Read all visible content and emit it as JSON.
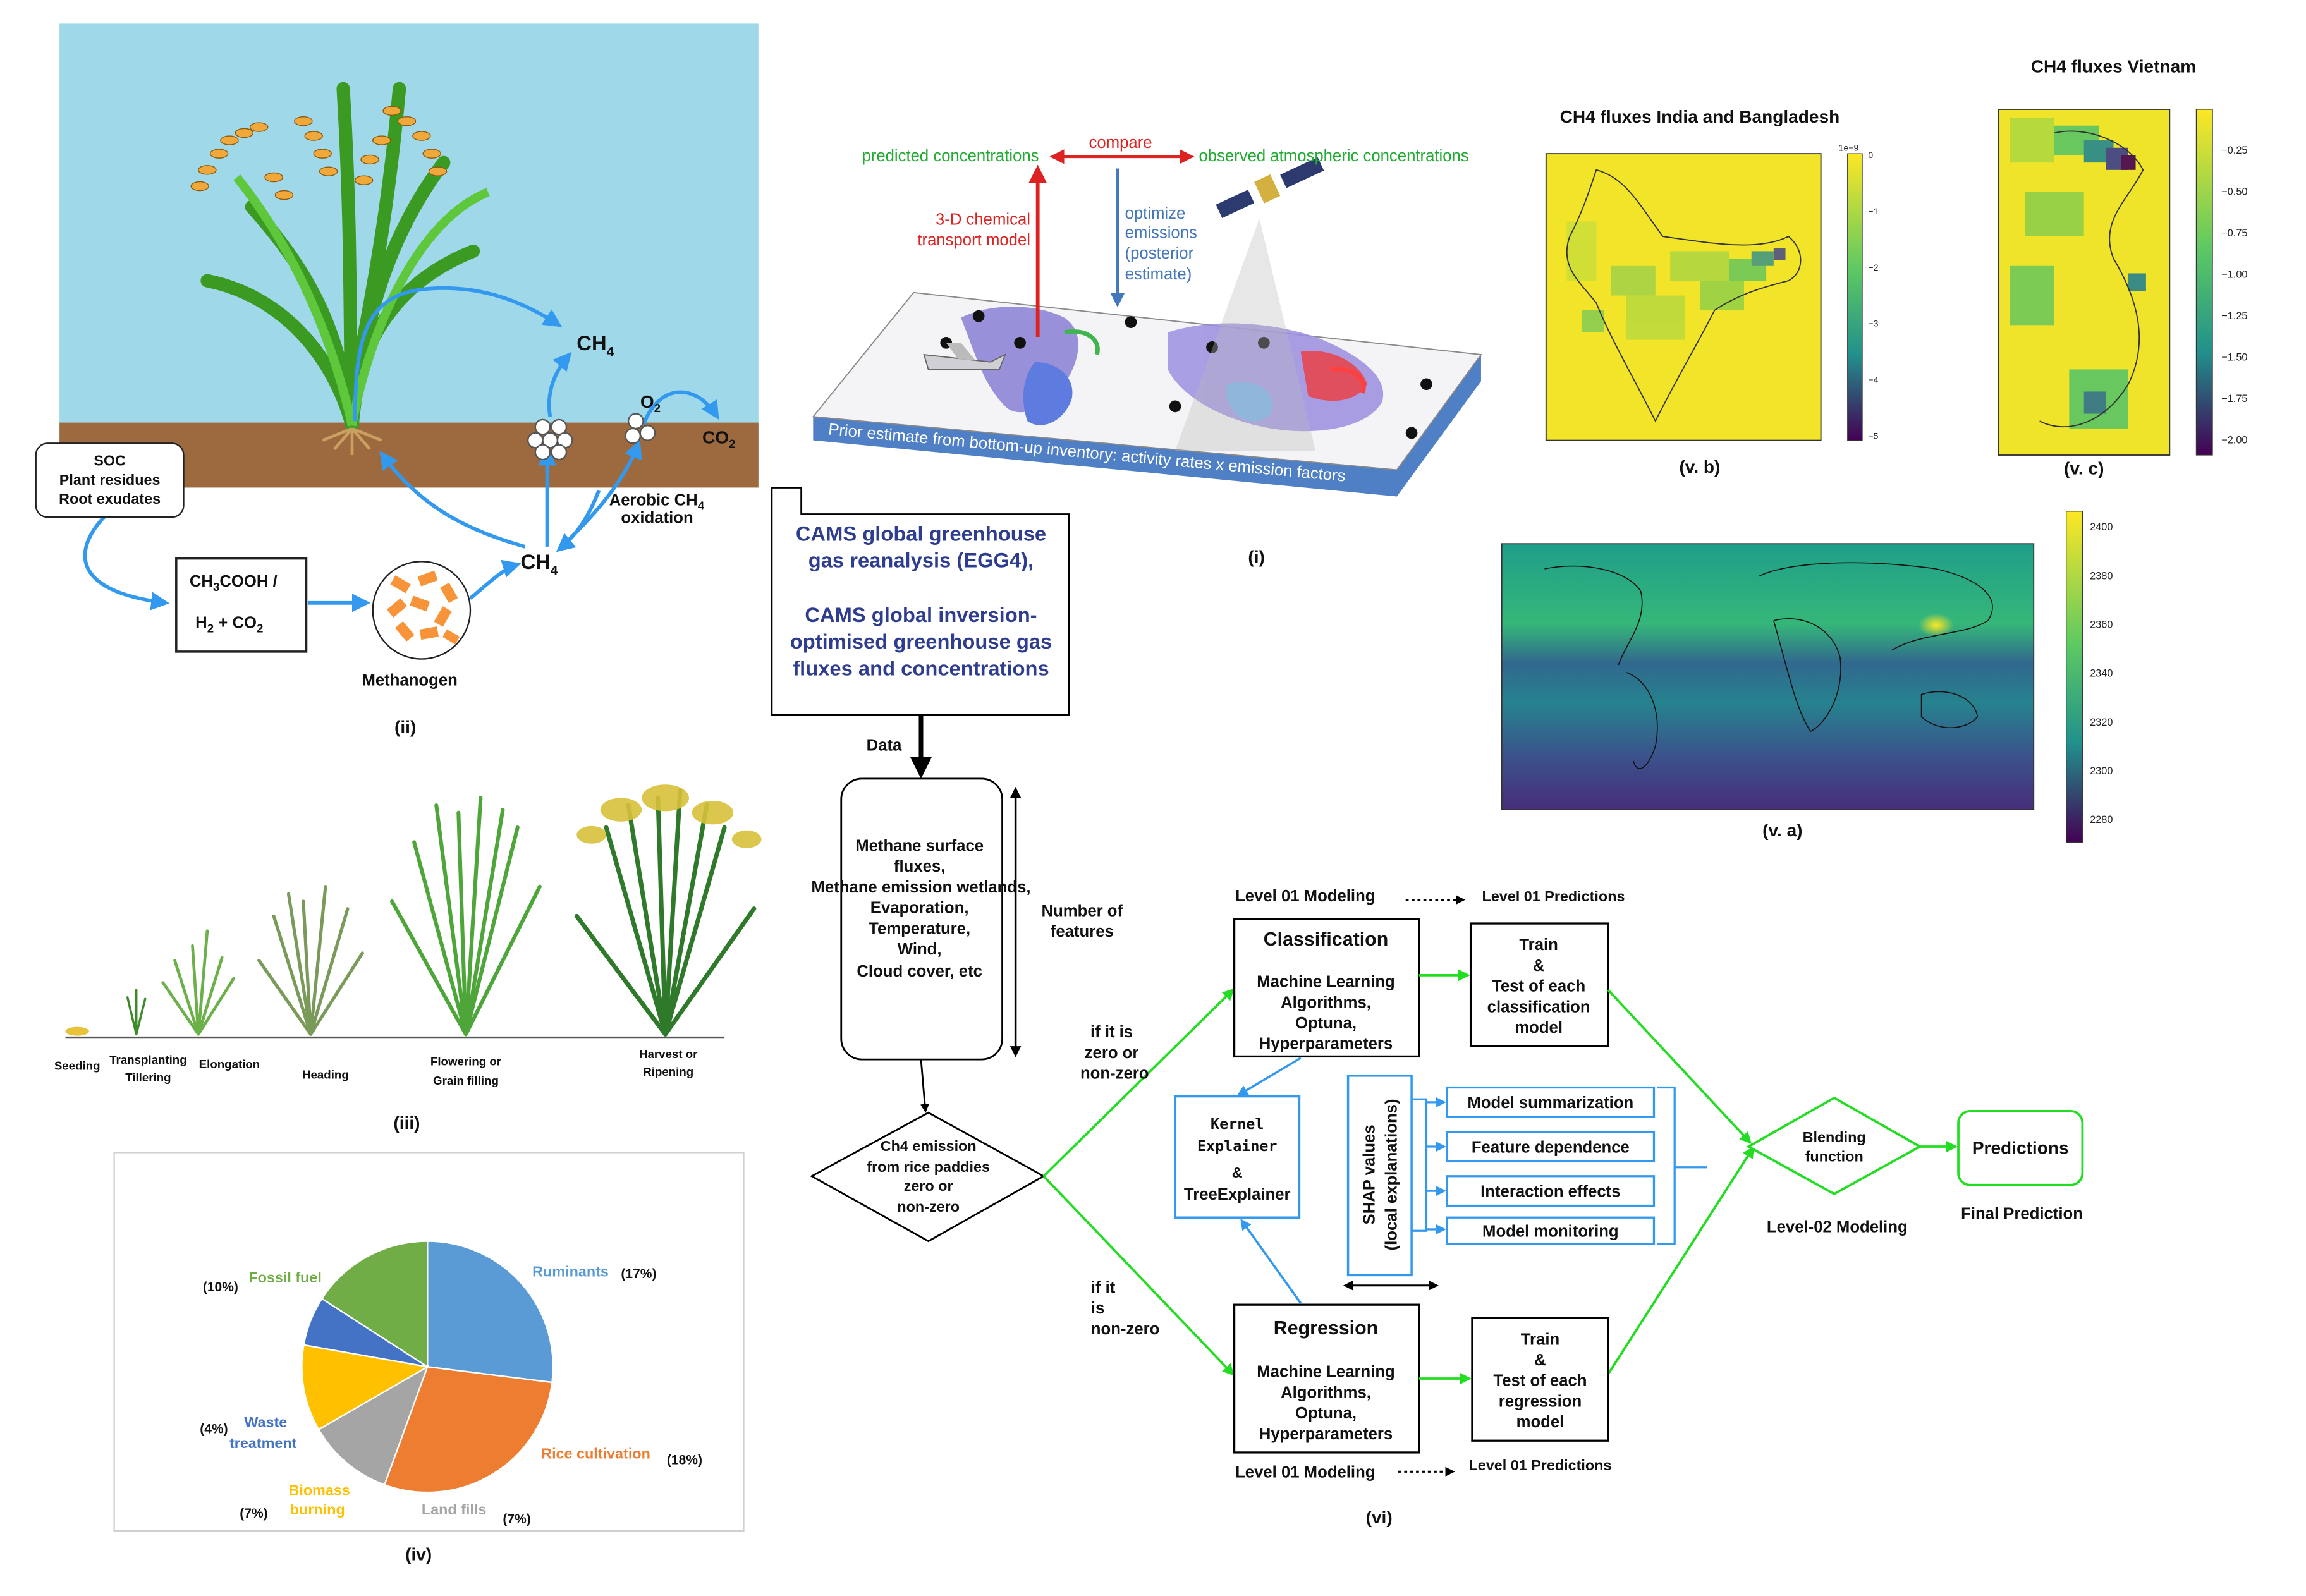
{
  "panel_ii": {
    "caption": "(ii)",
    "soc": [
      "SOC",
      "Plant residues",
      "Root exudates"
    ],
    "acetate_top_a": "CH",
    "acetate_top_sub": "3",
    "acetate_top_b": "COOH  /",
    "acetate_bottom_a": "H",
    "acetate_bottom_sub1": "2",
    "acetate_bottom_b": " + CO",
    "acetate_bottom_sub2": "2",
    "methanogen": "Methanogen",
    "ch4_a": "CH",
    "ch4_sub": "4",
    "o2_a": "O",
    "o2_sub": "2",
    "co2_a": "CO",
    "co2_sub": "2",
    "aerobic_line1": "Aerobic CH",
    "aerobic_sub": "4",
    "aerobic_line2": "oxidation"
  },
  "panel_i": {
    "caption": "(i)",
    "predicted": "predicted concentrations",
    "compare": "compare",
    "observed": "observed atmospheric concentrations",
    "ctm": [
      "3-D chemical",
      "transport model"
    ],
    "optimize": [
      "optimize",
      "emissions",
      "(posterior",
      "estimate)"
    ],
    "prior": "Prior estimate from bottom-up inventory: activity rates x emission factors"
  },
  "panel_v": {
    "india_title": "CH4 fluxes India and Bangladesh",
    "vietnam_title": "CH4 fluxes Vietnam",
    "cap_b": "(v. b)",
    "cap_c": "(v. c)",
    "cap_a": "(v. a)",
    "india_exp": "1e−9",
    "india_ticks": [
      "0",
      "−1",
      "−2",
      "−3",
      "−4",
      "−5"
    ],
    "vietnam_ticks": [
      "−0.25",
      "−0.50",
      "−0.75",
      "−1.00",
      "−1.25",
      "−1.50",
      "−1.75",
      "−2.00"
    ],
    "global_ticks": [
      "2400",
      "2380",
      "2360",
      "2340",
      "2320",
      "2300",
      "2280"
    ]
  },
  "panel_iii": {
    "caption": "(iii)",
    "stages": [
      "Seeding",
      "Transplanting",
      "Tillering",
      "Elongation",
      "Heading",
      "Flowering or",
      "Grain filling",
      "Harvest or",
      "Ripening"
    ]
  },
  "panel_iv": {
    "caption": "(iv)",
    "slices": [
      {
        "name": "Ruminants",
        "pct": "(17%)"
      },
      {
        "name": "Rice cultivation",
        "pct": "(18%)"
      },
      {
        "name": "Land fills",
        "pct": "(7%)"
      },
      {
        "name": "Biomass burning",
        "pct": "(7%)"
      },
      {
        "name": "Waste treatment",
        "pct": "(4%)"
      },
      {
        "name": "Fossil fuel",
        "pct": "(10%)"
      }
    ],
    "labels": {
      "ruminants": "Ruminants",
      "rice": "Rice cultivation",
      "landfills": "Land fills",
      "biomass1": "Biomass",
      "biomass2": "burning",
      "waste1": "Waste",
      "waste2": "treatment",
      "fossil": "Fossil fuel"
    },
    "colors": {
      "ruminants": "#5b9bd5",
      "rice": "#ed7d31",
      "landfills": "#a5a5a5",
      "biomass": "#ffc000",
      "waste": "#4472c4",
      "fossil": "#70ad47"
    }
  },
  "flow": {
    "cams": [
      "CAMS global greenhouse",
      "gas reanalysis (EGG4),",
      "",
      "CAMS global inversion-",
      "optimised greenhouse gas",
      "fluxes and concentrations"
    ],
    "data": "Data",
    "features": [
      "Methane surface",
      "fluxes,",
      "Methane emission wetlands,",
      "Evaporation,",
      "Temperature,",
      "Wind,",
      "Cloud cover, etc"
    ],
    "num_features": [
      "Number of",
      "features"
    ],
    "decision": [
      "Ch4 emission",
      "from rice paddies",
      "zero or",
      "non-zero"
    ],
    "zero_nonzero": [
      "if it is",
      "zero or",
      "non-zero"
    ],
    "nonzero": [
      "if it",
      "is",
      "non-zero"
    ],
    "level01_top": "Level 01 Modeling",
    "level01_pred_top": "Level 01 Predictions",
    "level01_bottom": "Level 01 Modeling",
    "level01_pred_bottom": "Level 01 Predictions",
    "classification_title": "Classification",
    "ml_lines": [
      "Machine Learning",
      "Algorithms,",
      "Optuna,",
      "Hyperparameters"
    ],
    "regression_title": "Regression",
    "train_class": [
      "Train",
      "&",
      "Test of each",
      "classification",
      "model"
    ],
    "train_reg": [
      "Train",
      "&",
      "Test of each",
      "regression",
      "model"
    ],
    "kernel": [
      "Kernel",
      "Explainer",
      "&",
      "TreeExplainer"
    ],
    "shap": [
      "SHAP values",
      "(local explanations)"
    ],
    "outputs": [
      "Model summarization",
      "Feature dependence",
      "Interaction effects",
      "Model monitoring"
    ],
    "blending": [
      "Blending",
      "function"
    ],
    "predictions": "Predictions",
    "level02": "Level-02  Modeling",
    "final": "Final Prediction",
    "caption": "(vi)"
  }
}
